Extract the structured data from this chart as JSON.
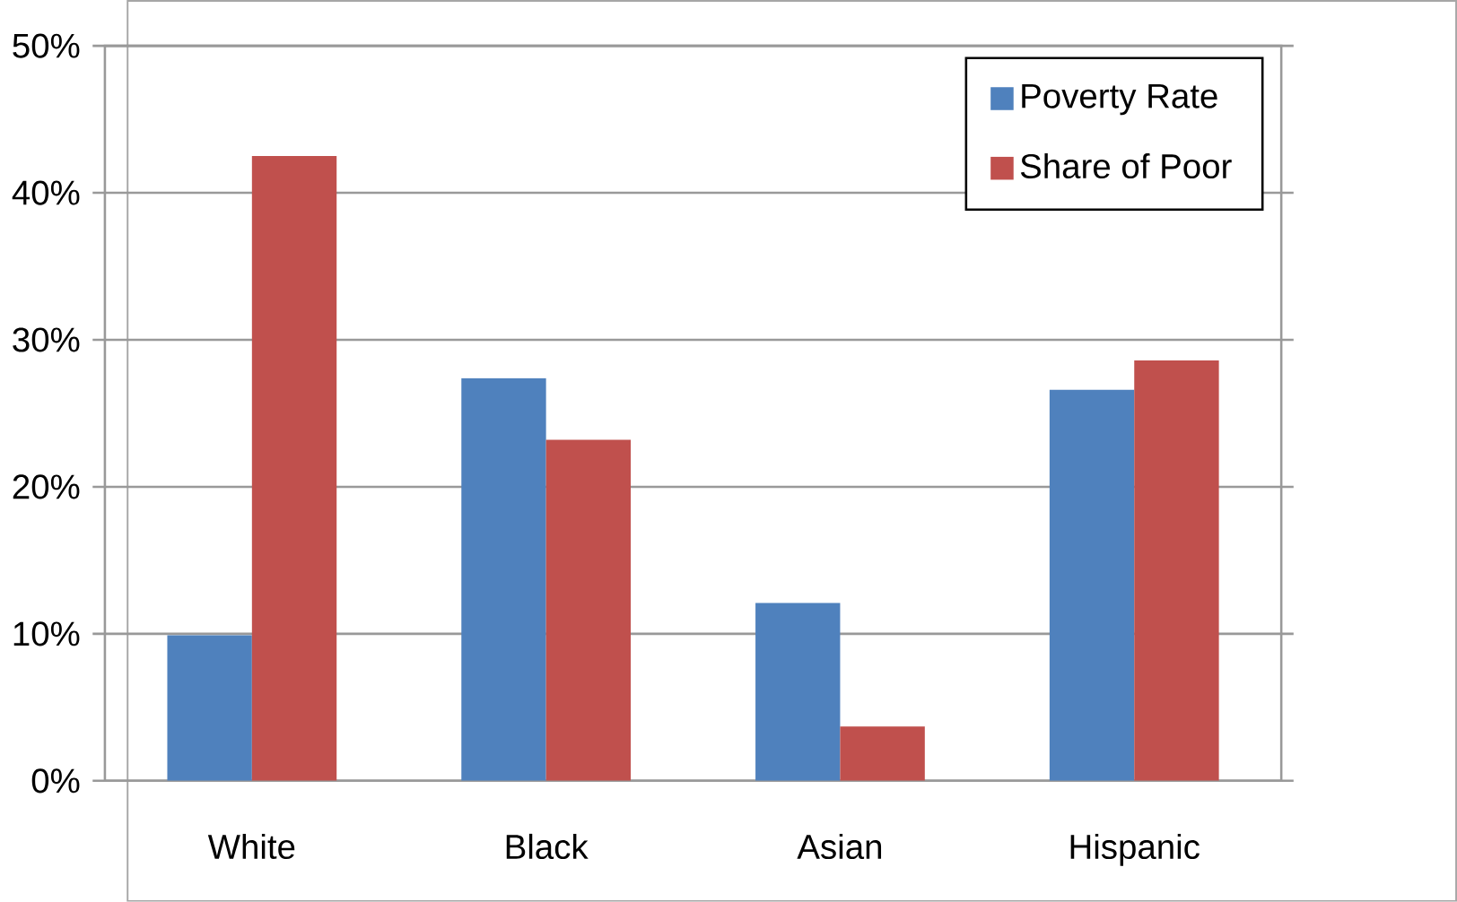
{
  "chart_data": {
    "type": "bar",
    "categories": [
      "White",
      "Black",
      "Asian",
      "Hispanic"
    ],
    "series": [
      {
        "name": "Poverty Rate",
        "color": "#4f81bd",
        "values": [
          9.9,
          27.4,
          12.1,
          26.6
        ]
      },
      {
        "name": "Share of Poor",
        "color": "#c0504d",
        "values": [
          42.5,
          23.2,
          3.7,
          28.6
        ]
      }
    ],
    "ylim": [
      0,
      50
    ],
    "yticks": [
      {
        "value": 0,
        "label": "0%"
      },
      {
        "value": 10,
        "label": "10%"
      },
      {
        "value": 20,
        "label": "20%"
      },
      {
        "value": 30,
        "label": "30%"
      },
      {
        "value": 40,
        "label": "40%"
      },
      {
        "value": 50,
        "label": "50%"
      }
    ],
    "grid": "y",
    "legend": "top right"
  }
}
